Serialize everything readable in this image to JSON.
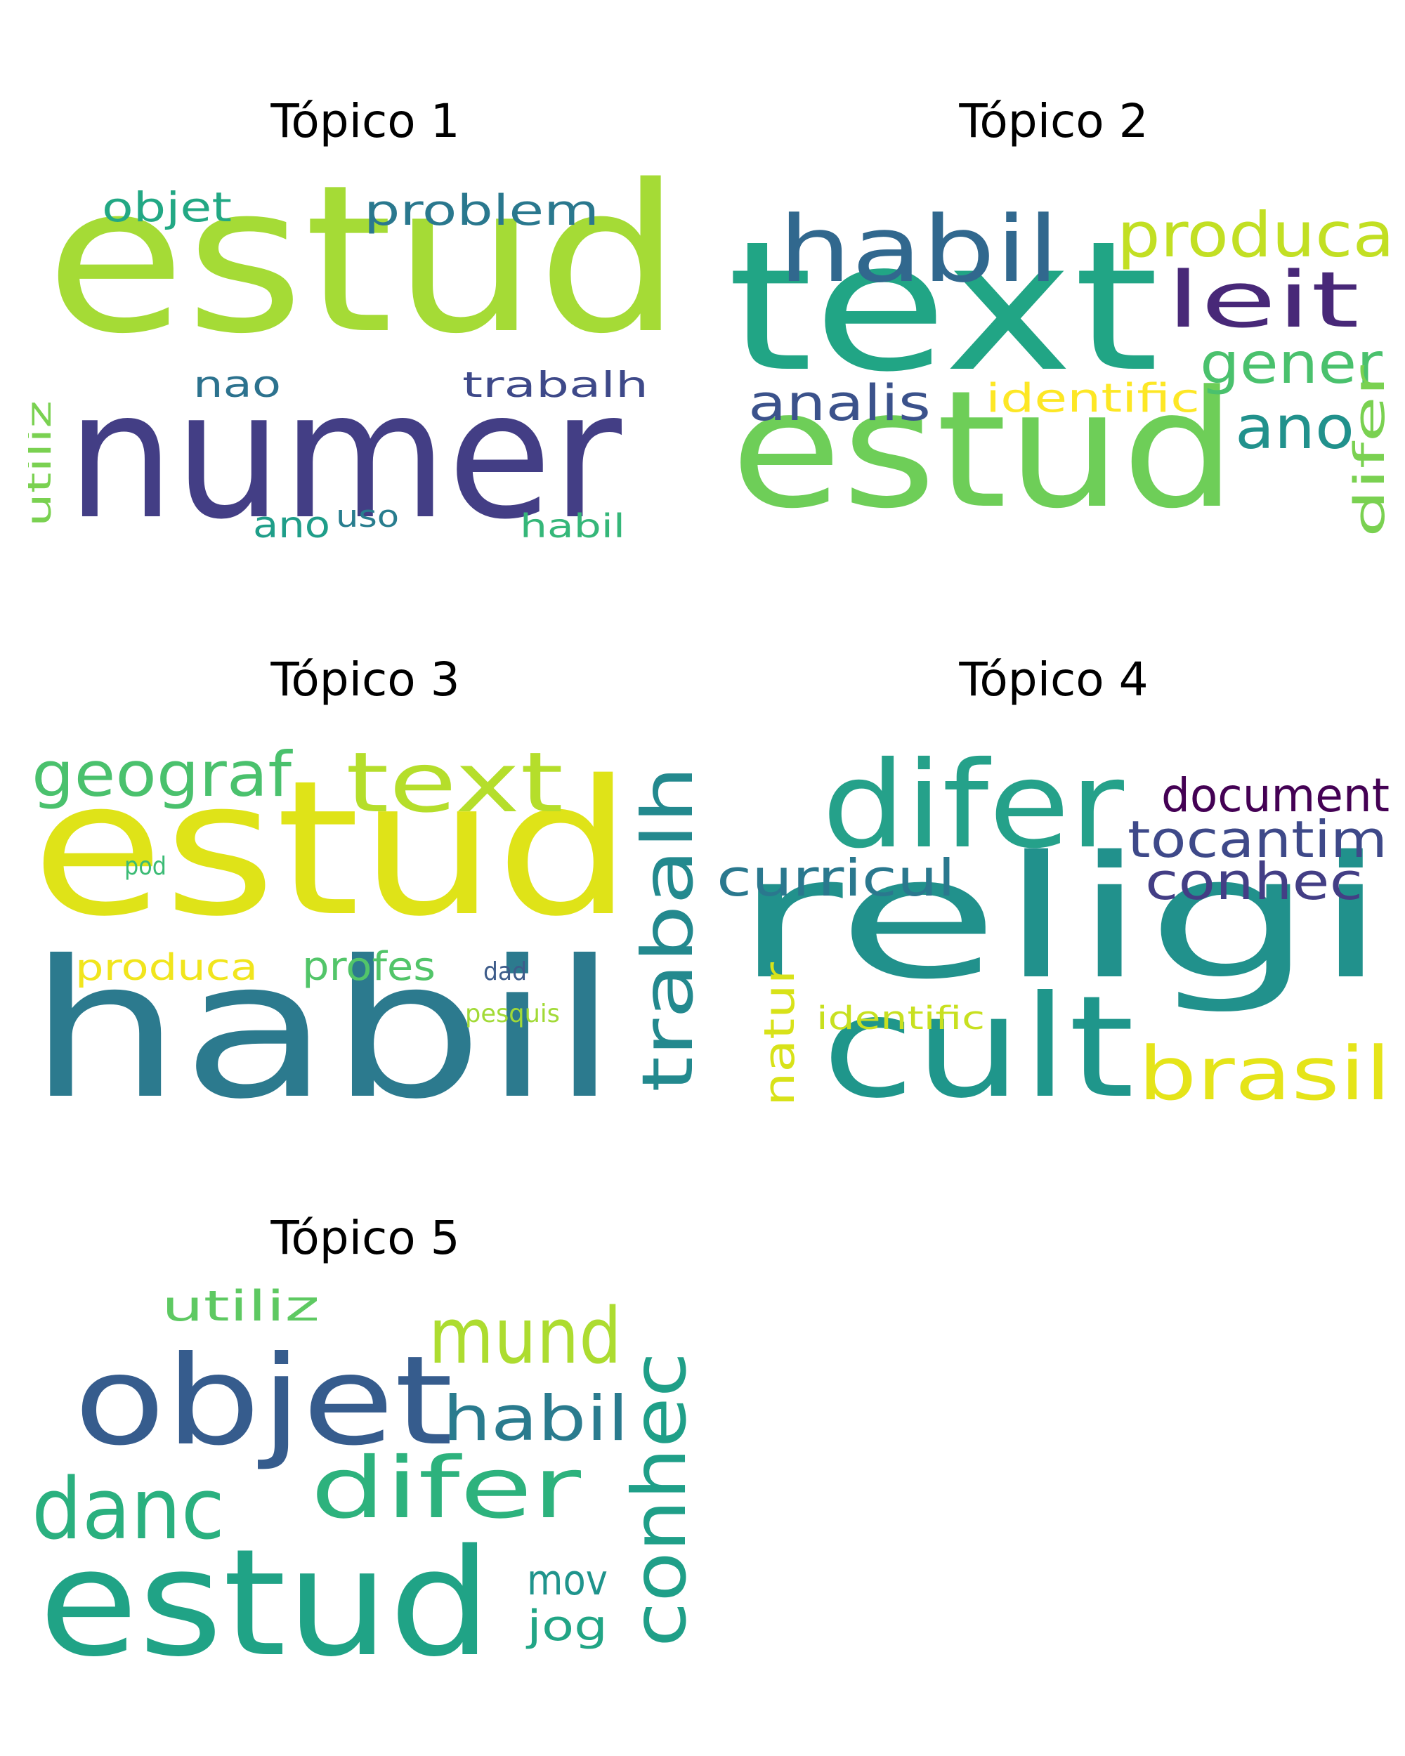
{
  "topics": [
    {
      "title": "Tópico 1",
      "words": [
        {
          "text": "estud",
          "color": "#a5db36"
        },
        {
          "text": "numer",
          "color": "#433e85"
        },
        {
          "text": "problem",
          "color": "#2a788e"
        },
        {
          "text": "objet",
          "color": "#22a884"
        },
        {
          "text": "nao",
          "color": "#2c728e"
        },
        {
          "text": "trabalh",
          "color": "#3e4989"
        },
        {
          "text": "utiliz",
          "color": "#7ad151"
        },
        {
          "text": "ano",
          "color": "#1f9e89"
        },
        {
          "text": "uso",
          "color": "#287d8e"
        },
        {
          "text": "habil",
          "color": "#35b779"
        }
      ]
    },
    {
      "title": "Tópico 2",
      "words": [
        {
          "text": "text",
          "color": "#21a585"
        },
        {
          "text": "estud",
          "color": "#6ece58"
        },
        {
          "text": "habil",
          "color": "#31688e"
        },
        {
          "text": "produca",
          "color": "#c2df23"
        },
        {
          "text": "leit",
          "color": "#482878"
        },
        {
          "text": "gener",
          "color": "#4ac16d"
        },
        {
          "text": "analis",
          "color": "#3b528b"
        },
        {
          "text": "identific",
          "color": "#fde725"
        },
        {
          "text": "ano",
          "color": "#21918c"
        },
        {
          "text": "difer",
          "color": "#7ad151"
        }
      ]
    },
    {
      "title": "Tópico 3",
      "words": [
        {
          "text": "estud",
          "color": "#dfe318"
        },
        {
          "text": "habil",
          "color": "#2c7a8e"
        },
        {
          "text": "text",
          "color": "#b5de2b"
        },
        {
          "text": "geograf",
          "color": "#4ac16d"
        },
        {
          "text": "trabalh",
          "color": "#23898e"
        },
        {
          "text": "pod",
          "color": "#3bbb75"
        },
        {
          "text": "produca",
          "color": "#f1e51d"
        },
        {
          "text": "profes",
          "color": "#52c569"
        },
        {
          "text": "dad",
          "color": "#3e5c8a"
        },
        {
          "text": "pesquis",
          "color": "#a2da37"
        }
      ]
    },
    {
      "title": "Tópico 4",
      "words": [
        {
          "text": "religi",
          "color": "#21918c"
        },
        {
          "text": "cult",
          "color": "#1f968b"
        },
        {
          "text": "difer",
          "color": "#25a18a"
        },
        {
          "text": "document",
          "color": "#440154"
        },
        {
          "text": "tocantim",
          "color": "#3e4989"
        },
        {
          "text": "conhec",
          "color": "#433e85"
        },
        {
          "text": "curricul",
          "color": "#2a788e"
        },
        {
          "text": "brasil",
          "color": "#e5e419"
        },
        {
          "text": "natur",
          "color": "#d8e219"
        },
        {
          "text": "identific",
          "color": "#c8e020"
        }
      ]
    },
    {
      "title": "Tópico 5",
      "words": [
        {
          "text": "estud",
          "color": "#20a386"
        },
        {
          "text": "objet",
          "color": "#365c8d"
        },
        {
          "text": "conhec",
          "color": "#1f9f88"
        },
        {
          "text": "mund",
          "color": "#addc30"
        },
        {
          "text": "habil",
          "color": "#2a7b8e"
        },
        {
          "text": "difer",
          "color": "#2db27d"
        },
        {
          "text": "danc",
          "color": "#2ab07f"
        },
        {
          "text": "utiliz",
          "color": "#5ec962"
        },
        {
          "text": "mov",
          "color": "#1f948c"
        },
        {
          "text": "jog",
          "color": "#21a585"
        }
      ]
    }
  ]
}
